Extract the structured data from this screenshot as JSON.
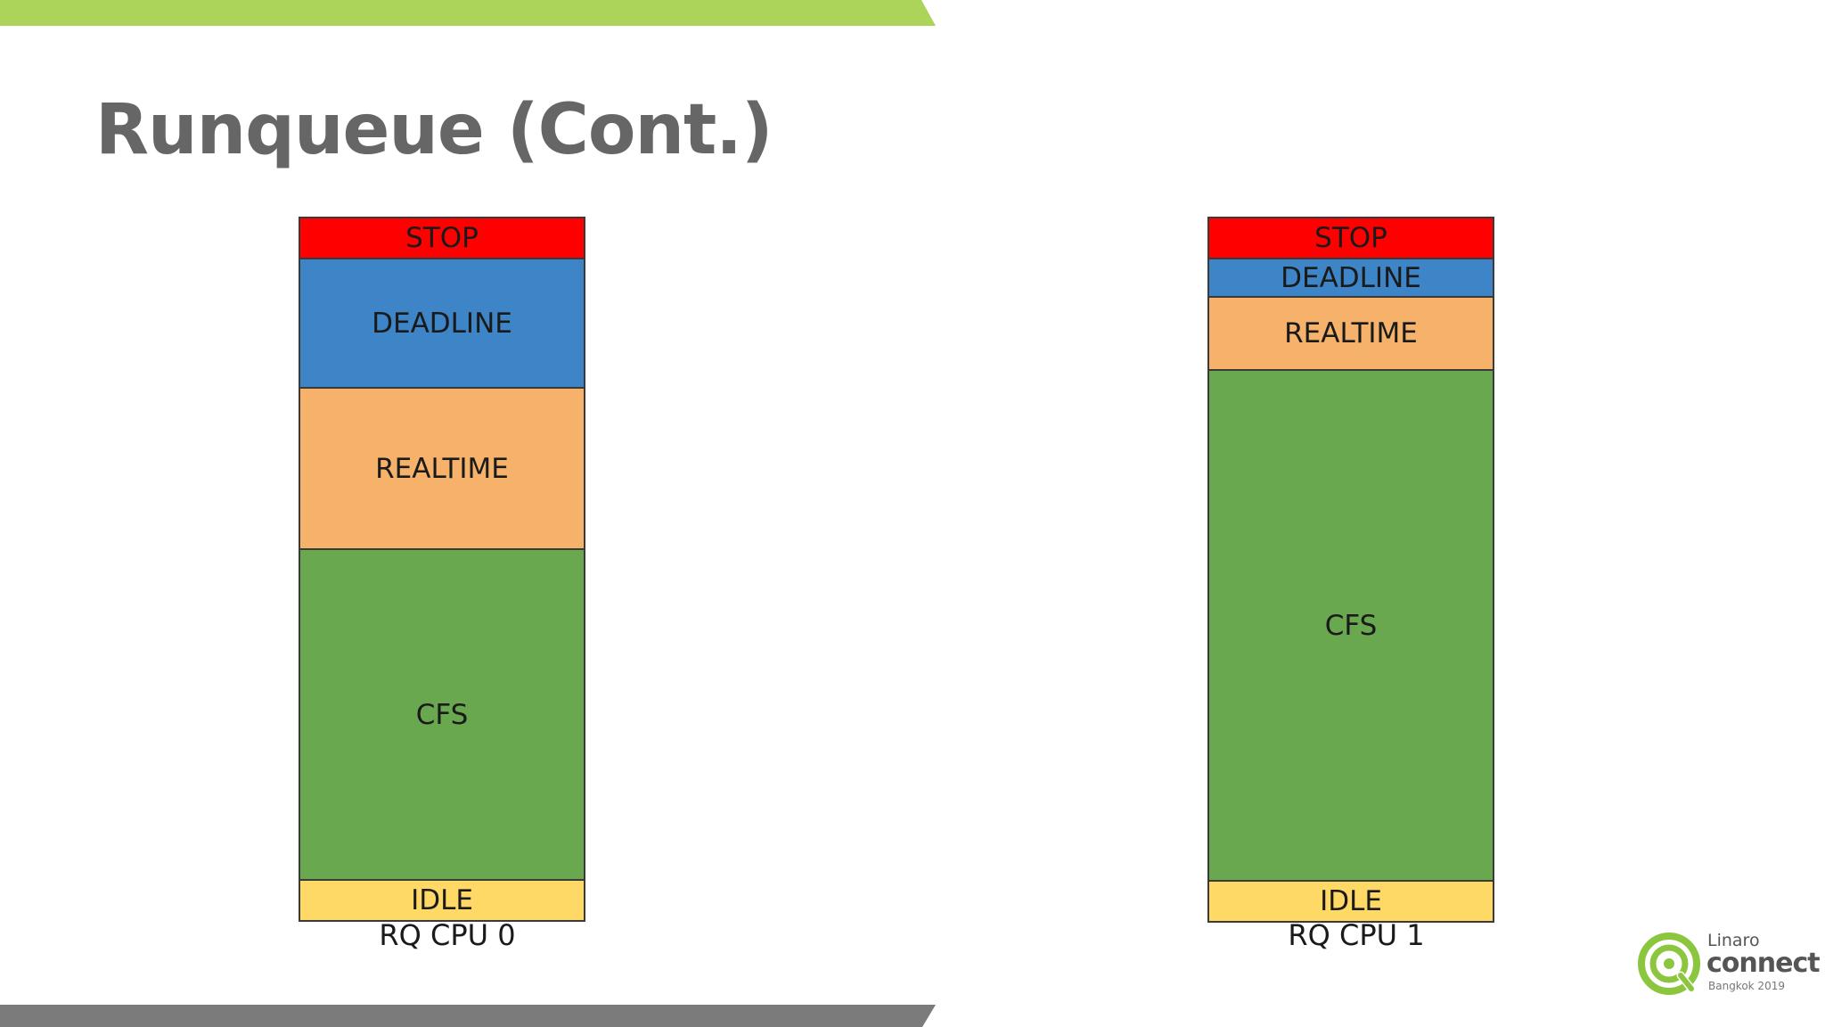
{
  "slide": {
    "title": "Runqueue (Cont.)"
  },
  "colors": {
    "top_bar": "#acd35a",
    "bottom_bar": "#7b7b7b",
    "title": "#666666",
    "stop": "#ff0000",
    "deadline": "#3d85c6",
    "realtime": "#f6b26b",
    "cfs": "#6aa84f",
    "idle": "#ffd966"
  },
  "runqueues": [
    {
      "caption": "RQ CPU 0",
      "segments": [
        {
          "label": "STOP",
          "color": "#ff0000"
        },
        {
          "label": "DEADLINE",
          "color": "#3d85c6"
        },
        {
          "label": "REALTIME",
          "color": "#f6b26b"
        },
        {
          "label": "CFS",
          "color": "#6aa84f"
        },
        {
          "label": "IDLE",
          "color": "#ffd966"
        }
      ]
    },
    {
      "caption": "RQ CPU 1",
      "segments": [
        {
          "label": "STOP",
          "color": "#ff0000"
        },
        {
          "label": "DEADLINE",
          "color": "#3d85c6"
        },
        {
          "label": "REALTIME",
          "color": "#f6b26b"
        },
        {
          "label": "CFS",
          "color": "#6aa84f"
        },
        {
          "label": "IDLE",
          "color": "#ffd966"
        }
      ]
    }
  ],
  "logo": {
    "brand": "Linaro",
    "product": "connect",
    "event": "Bangkok 2019",
    "icon": "linaro-connect-logo-icon"
  }
}
